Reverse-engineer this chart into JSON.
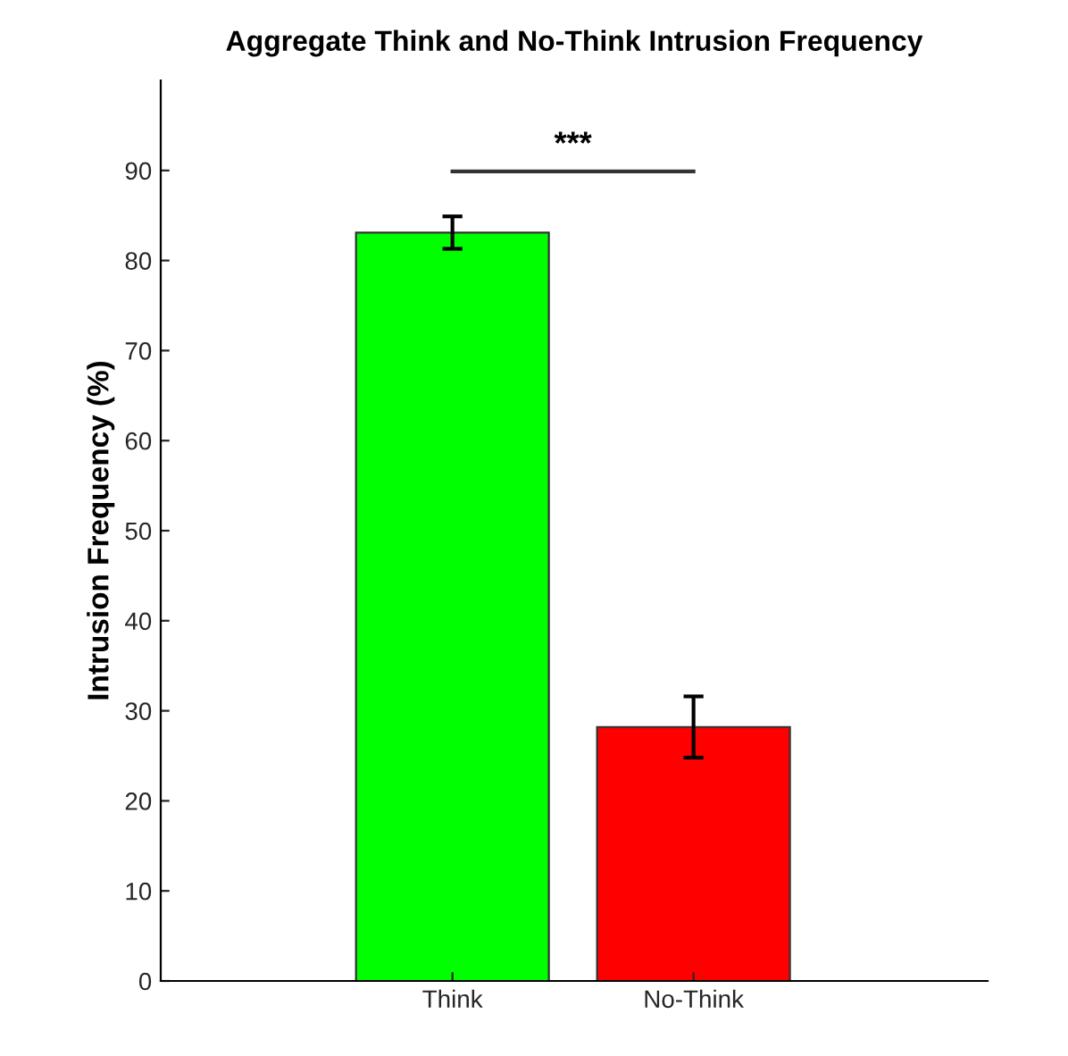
{
  "chart_data": {
    "type": "bar",
    "title": "Aggregate Think and No-Think Intrusion Frequency",
    "ylabel": "Intrusion Frequency (%)",
    "categories": [
      "Think",
      "No-Think"
    ],
    "values": [
      83.1,
      28.2
    ],
    "colors": [
      "#00ff00",
      "#ff0000"
    ],
    "errors": [
      1.8,
      3.4
    ],
    "ylim": [
      0,
      100
    ],
    "yticks": [
      0,
      10,
      20,
      30,
      40,
      50,
      60,
      70,
      80,
      90
    ],
    "grid": false,
    "legend": false,
    "annotations": [
      "***"
    ]
  }
}
